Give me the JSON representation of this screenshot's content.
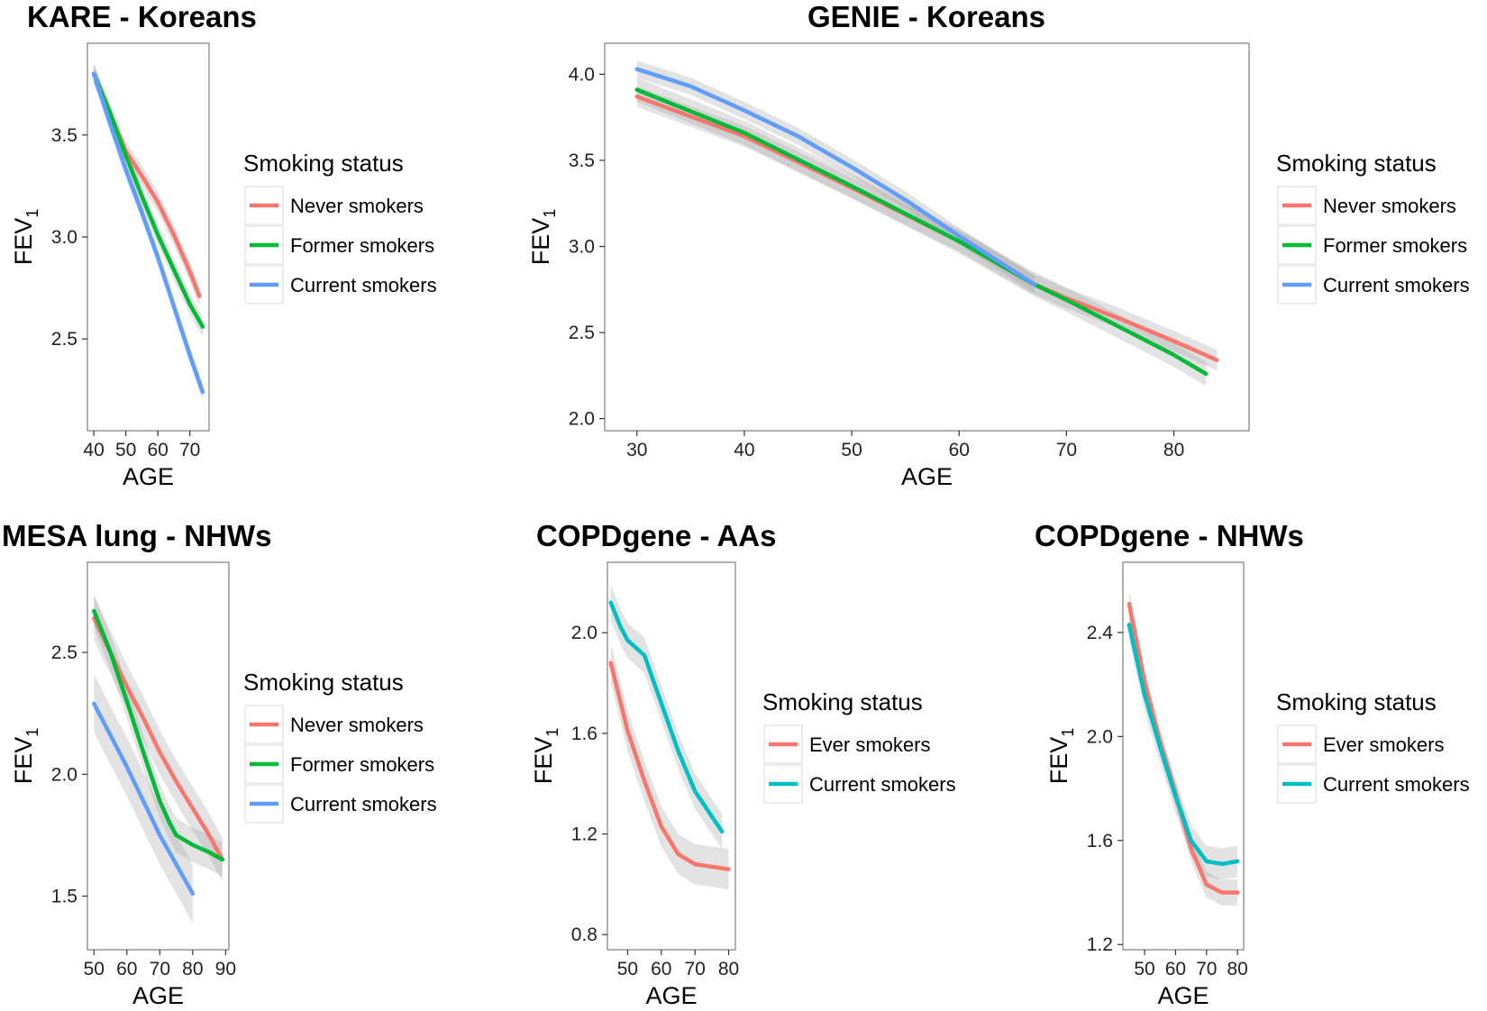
{
  "chart_data": [
    {
      "id": "kare",
      "type": "line",
      "title": "KARE - Koreans",
      "xlabel": "AGE",
      "ylabel": "FEV",
      "ylabel_subscript": "1",
      "xlim": [
        38,
        76
      ],
      "ylim": [
        2.05,
        3.95
      ],
      "xticks": [
        40,
        50,
        60,
        70
      ],
      "yticks": [
        2.5,
        3.0,
        3.5
      ],
      "legend": {
        "title": "Smoking status",
        "position": "right",
        "entries": [
          "Never smokers",
          "Former smokers",
          "Current smokers"
        ]
      },
      "series": [
        {
          "name": "Never smokers",
          "color": "#F8766D",
          "x": [
            40,
            45,
            50,
            55,
            60,
            65,
            70,
            73
          ],
          "y": [
            3.8,
            3.6,
            3.42,
            3.3,
            3.17,
            3.01,
            2.83,
            2.71
          ],
          "band": 0.05
        },
        {
          "name": "Former smokers",
          "color": "#00BA38",
          "x": [
            40,
            45,
            50,
            55,
            60,
            65,
            70,
            74
          ],
          "y": [
            3.8,
            3.61,
            3.4,
            3.2,
            3.01,
            2.84,
            2.67,
            2.56
          ],
          "band": 0.05
        },
        {
          "name": "Current smokers",
          "color": "#619CFF",
          "x": [
            40,
            45,
            50,
            55,
            60,
            65,
            70,
            74
          ],
          "y": [
            3.8,
            3.56,
            3.33,
            3.12,
            2.9,
            2.66,
            2.42,
            2.24
          ],
          "band": 0.04
        }
      ]
    },
    {
      "id": "genie",
      "type": "line",
      "title": "GENIE - Koreans",
      "xlabel": "AGE",
      "ylabel": "FEV",
      "ylabel_subscript": "1",
      "xlim": [
        27,
        87
      ],
      "ylim": [
        1.93,
        4.18
      ],
      "xticks": [
        30,
        40,
        50,
        60,
        70,
        80
      ],
      "yticks": [
        2.0,
        2.5,
        3.0,
        3.5,
        4.0
      ],
      "legend": {
        "title": "Smoking status",
        "position": "right",
        "entries": [
          "Never smokers",
          "Former smokers",
          "Current smokers"
        ]
      },
      "series": [
        {
          "name": "Never smokers",
          "color": "#F8766D",
          "x": [
            30,
            40,
            50,
            60,
            67,
            70,
            75,
            80,
            84
          ],
          "y": [
            3.87,
            3.64,
            3.34,
            3.03,
            2.78,
            2.7,
            2.58,
            2.45,
            2.34
          ],
          "band": 0.06
        },
        {
          "name": "Former smokers",
          "color": "#00BA38",
          "x": [
            30,
            40,
            50,
            60,
            67,
            70,
            75,
            80,
            83
          ],
          "y": [
            3.91,
            3.66,
            3.35,
            3.03,
            2.78,
            2.69,
            2.53,
            2.37,
            2.26
          ],
          "band": 0.07
        },
        {
          "name": "Current smokers",
          "color": "#619CFF",
          "x": [
            30,
            35,
            40,
            45,
            50,
            55,
            60,
            65,
            67
          ],
          "y": [
            4.03,
            3.93,
            3.79,
            3.64,
            3.46,
            3.27,
            3.06,
            2.86,
            2.78
          ],
          "band": 0.05
        }
      ]
    },
    {
      "id": "mesa",
      "type": "line",
      "title": "MESA lung - NHWs",
      "xlabel": "AGE",
      "ylabel": "FEV",
      "ylabel_subscript": "1",
      "xlim": [
        48,
        91
      ],
      "ylim": [
        1.28,
        2.87
      ],
      "xticks": [
        50,
        60,
        70,
        80,
        90
      ],
      "yticks": [
        1.5,
        2.0,
        2.5
      ],
      "legend": {
        "title": "Smoking status",
        "position": "right",
        "entries": [
          "Never smokers",
          "Former smokers",
          "Current smokers"
        ]
      },
      "series": [
        {
          "name": "Never smokers",
          "color": "#F8766D",
          "x": [
            50,
            55,
            60,
            65,
            70,
            75,
            80,
            85,
            89
          ],
          "y": [
            2.64,
            2.5,
            2.36,
            2.23,
            2.09,
            1.97,
            1.86,
            1.75,
            1.65
          ],
          "band": 0.09
        },
        {
          "name": "Former smokers",
          "color": "#00BA38",
          "x": [
            50,
            55,
            60,
            65,
            70,
            73,
            75,
            80,
            85,
            89
          ],
          "y": [
            2.67,
            2.5,
            2.3,
            2.09,
            1.89,
            1.8,
            1.75,
            1.71,
            1.68,
            1.65
          ],
          "band": 0.07
        },
        {
          "name": "Current smokers",
          "color": "#619CFF",
          "x": [
            50,
            55,
            60,
            65,
            70,
            75,
            80
          ],
          "y": [
            2.29,
            2.16,
            2.03,
            1.89,
            1.75,
            1.63,
            1.51
          ],
          "band": 0.12
        }
      ]
    },
    {
      "id": "copd_aa",
      "type": "line",
      "title": "COPDgene - AAs",
      "xlabel": "AGE",
      "ylabel": "FEV",
      "ylabel_subscript": "1",
      "xlim": [
        44,
        82
      ],
      "ylim": [
        0.74,
        2.28
      ],
      "xticks": [
        50,
        60,
        70,
        80
      ],
      "yticks": [
        0.8,
        1.2,
        1.6,
        2.0
      ],
      "legend": {
        "title": "Smoking status",
        "position": "right",
        "entries": [
          "Ever smokers",
          "Current smokers"
        ]
      },
      "series": [
        {
          "name": "Ever smokers",
          "color": "#F8766D",
          "x": [
            45,
            50,
            55,
            60,
            65,
            70,
            75,
            80
          ],
          "y": [
            1.88,
            1.61,
            1.41,
            1.23,
            1.12,
            1.08,
            1.07,
            1.06
          ],
          "band": 0.08
        },
        {
          "name": "Current smokers",
          "color": "#00BFC4",
          "x": [
            45,
            48,
            50,
            55,
            60,
            65,
            70,
            75,
            78
          ],
          "y": [
            2.12,
            2.02,
            1.97,
            1.91,
            1.72,
            1.53,
            1.37,
            1.27,
            1.21
          ],
          "band": 0.07
        }
      ]
    },
    {
      "id": "copd_nhw",
      "type": "line",
      "title": "COPDgene - NHWs",
      "xlabel": "AGE",
      "ylabel": "FEV",
      "ylabel_subscript": "1",
      "xlim": [
        43,
        82
      ],
      "ylim": [
        1.18,
        2.67
      ],
      "xticks": [
        50,
        60,
        70,
        80
      ],
      "yticks": [
        1.2,
        1.6,
        2.0,
        2.4
      ],
      "legend": {
        "title": "Smoking status",
        "position": "right",
        "entries": [
          "Ever smokers",
          "Current smokers"
        ]
      },
      "series": [
        {
          "name": "Ever smokers",
          "color": "#F8766D",
          "x": [
            45,
            50,
            55,
            60,
            65,
            70,
            75,
            80
          ],
          "y": [
            2.51,
            2.21,
            1.98,
            1.78,
            1.57,
            1.43,
            1.4,
            1.4
          ],
          "band": 0.05
        },
        {
          "name": "Current smokers",
          "color": "#00BFC4",
          "x": [
            45,
            50,
            55,
            60,
            65,
            70,
            75,
            80
          ],
          "y": [
            2.43,
            2.16,
            1.96,
            1.77,
            1.6,
            1.52,
            1.51,
            1.52
          ],
          "band": 0.06
        }
      ]
    }
  ]
}
